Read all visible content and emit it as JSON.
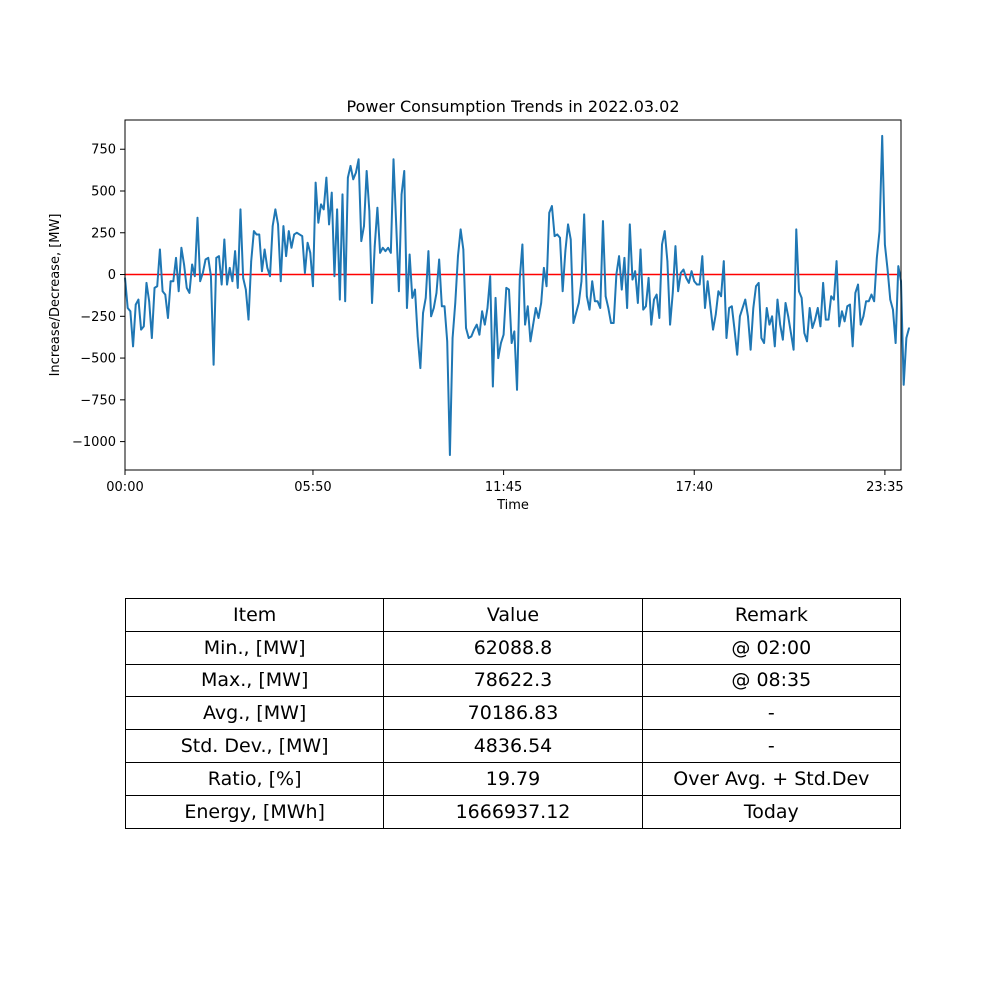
{
  "chart_data": {
    "type": "line",
    "title": "Power Consumption Trends in 2022.03.02",
    "xlabel": "Time",
    "ylabel": "Increase/Decrease, [MW]",
    "x_tick_labels": [
      "00:00",
      "05:50",
      "11:45",
      "17:40",
      "23:35"
    ],
    "x_tick_index": [
      0,
      70,
      141,
      212,
      283
    ],
    "y_ticks": [
      750,
      500,
      250,
      0,
      -250,
      -500,
      -750,
      -1000
    ],
    "y_tick_labels": [
      "750",
      "500",
      "250",
      "0",
      "−250",
      "−500",
      "−750",
      "−1000"
    ],
    "ylim": [
      -1170,
      925
    ],
    "xlim": [
      0,
      289
    ],
    "sample_interval_min": 5,
    "reference_line": {
      "y": 0,
      "color": "#ff0000"
    },
    "grid": false,
    "series": [
      {
        "name": "Increase/Decrease",
        "color": "#1f77b4",
        "values": [
          -20,
          -200,
          -220,
          -430,
          -180,
          -150,
          -330,
          -310,
          -50,
          -160,
          -380,
          -80,
          -70,
          150,
          -100,
          -120,
          -260,
          -40,
          -40,
          100,
          -100,
          160,
          60,
          -80,
          -110,
          60,
          -10,
          340,
          -40,
          10,
          90,
          100,
          -10,
          -540,
          100,
          110,
          -60,
          210,
          -60,
          40,
          -40,
          140,
          -80,
          390,
          -20,
          -90,
          -270,
          80,
          260,
          240,
          240,
          20,
          150,
          40,
          -10,
          290,
          390,
          300,
          -40,
          290,
          110,
          260,
          160,
          240,
          250,
          240,
          230,
          10,
          190,
          130,
          -70,
          550,
          310,
          420,
          390,
          580,
          300,
          490,
          -10,
          390,
          -150,
          480,
          -160,
          580,
          650,
          570,
          610,
          690,
          200,
          290,
          620,
          380,
          -170,
          170,
          400,
          130,
          160,
          140,
          160,
          130,
          690,
          300,
          -100,
          480,
          620,
          -200,
          120,
          -140,
          -90,
          -370,
          -560,
          -230,
          -140,
          140,
          -250,
          -200,
          -110,
          90,
          -190,
          -190,
          -400,
          -1080,
          -380,
          -170,
          110,
          270,
          150,
          -320,
          -380,
          -370,
          -330,
          -300,
          -360,
          -220,
          -300,
          -200,
          -10,
          -670,
          -140,
          -500,
          -410,
          -360,
          -80,
          -90,
          -410,
          -340,
          -690,
          -30,
          180,
          -300,
          -190,
          -400,
          -300,
          -200,
          -260,
          -170,
          40,
          -70,
          370,
          410,
          230,
          240,
          220,
          -100,
          140,
          300,
          210,
          -290,
          -230,
          -170,
          -40,
          360,
          -130,
          -210,
          -40,
          -160,
          -160,
          -200,
          320,
          -130,
          -200,
          -290,
          -290,
          0,
          110,
          -90,
          100,
          -200,
          300,
          -30,
          20,
          -170,
          150,
          -210,
          -190,
          -20,
          -300,
          -150,
          -120,
          -260,
          180,
          260,
          80,
          -300,
          -110,
          170,
          -100,
          10,
          30,
          -20,
          -50,
          20,
          -40,
          -60,
          -60,
          110,
          -200,
          -40,
          -190,
          -330,
          -240,
          -100,
          -130,
          80,
          -380,
          -200,
          -190,
          -330,
          -480,
          -250,
          -200,
          -150,
          -250,
          -450,
          -200,
          -70,
          -50,
          -380,
          -410,
          -200,
          -300,
          -250,
          -430,
          -150,
          -300,
          -390,
          -170,
          -250,
          -350,
          -450,
          270,
          -100,
          -140,
          -350,
          -400,
          -200,
          -320,
          -270,
          -200,
          -310,
          -50,
          -270,
          -270,
          -130,
          -150,
          80,
          -310,
          -220,
          -280,
          -190,
          -180,
          -430,
          -110,
          -60,
          -300,
          -250,
          -160,
          -160,
          -120,
          -160,
          100,
          260,
          830,
          180,
          30,
          -150,
          -210,
          -410,
          50,
          -40,
          -660,
          -380,
          -320
        ]
      }
    ]
  },
  "stats_table": {
    "header": [
      "Item",
      "Value",
      "Remark"
    ],
    "rows": [
      [
        "Min., [MW]",
        "62088.8",
        "@ 02:00"
      ],
      [
        "Max., [MW]",
        "78622.3",
        "@ 08:35"
      ],
      [
        "Avg., [MW]",
        "70186.83",
        "-"
      ],
      [
        "Std. Dev., [MW]",
        "4836.54",
        "-"
      ],
      [
        "Ratio, [%]",
        "19.79",
        "Over Avg. + Std.Dev"
      ],
      [
        "Energy, [MWh]",
        "1666937.12",
        "Today"
      ]
    ]
  }
}
